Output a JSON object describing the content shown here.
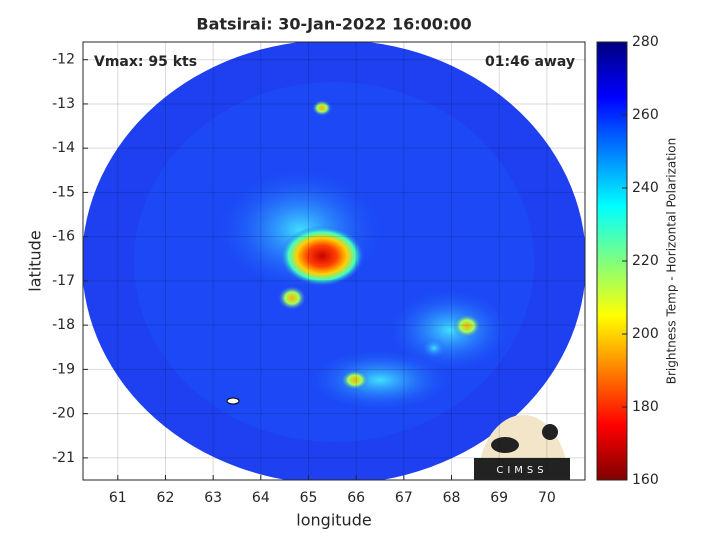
{
  "chart_data": {
    "type": "image",
    "title": "Batsirai: 30-Jan-2022 16:00:00",
    "annotations": [
      "Vmax: 95 kts",
      "01:46 away"
    ],
    "xlabel": "longitude",
    "ylabel": "latitude",
    "xlim": [
      60.27,
      70.8
    ],
    "xticks": [
      61,
      62,
      63,
      64,
      65,
      66,
      67,
      68,
      69,
      70
    ],
    "ylim": [
      -21.5,
      -11.6
    ],
    "yticks": [
      -21,
      -20,
      -19,
      -18,
      -17,
      -16,
      -15,
      -14,
      -13,
      -12
    ],
    "grid": true,
    "colorbar": {
      "label": "Brightness Temp - Horizontal Polarization",
      "lim": [
        160,
        280
      ],
      "ticks": [
        160,
        180,
        200,
        220,
        240,
        260,
        280
      ],
      "colormap": "jet"
    },
    "logo_text": "CIMSS"
  }
}
